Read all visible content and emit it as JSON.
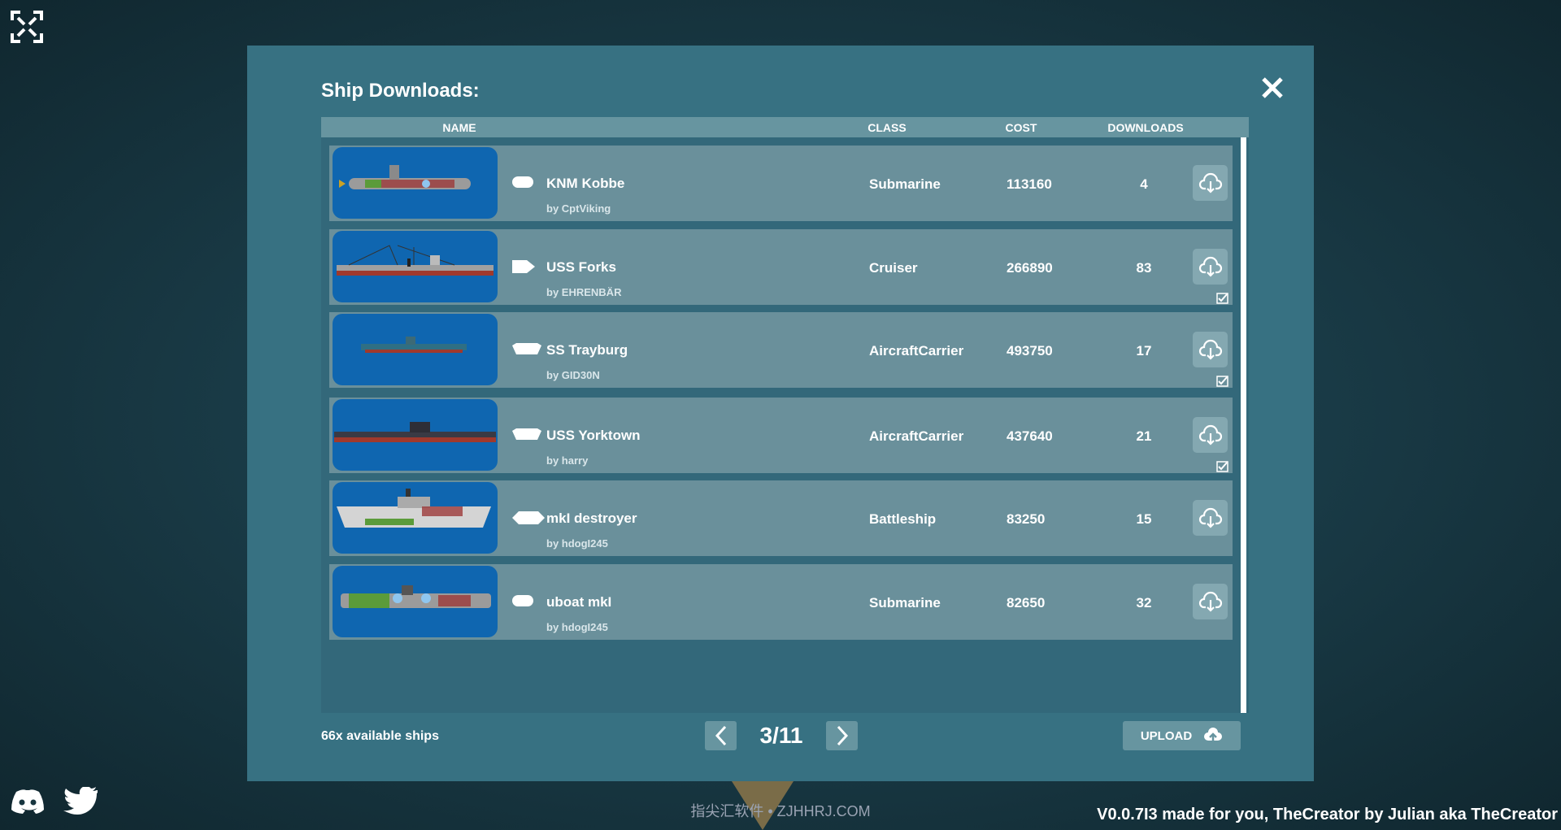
{
  "dialog": {
    "title": "Ship Downloads:",
    "close_icon": "close-icon"
  },
  "columns": {
    "name": "NAME",
    "class": "CLASS",
    "cost": "COST",
    "downloads": "DOWNLOADS"
  },
  "ships": [
    {
      "name": "KNM Kobbe",
      "author": "by CptViking",
      "class": "Submarine",
      "cost": "113160",
      "downloads": "4",
      "type_icon": "pill",
      "downloaded": false
    },
    {
      "name": "USS Forks",
      "author": "by EHRENBÄR",
      "class": "Cruiser",
      "cost": "266890",
      "downloads": "83",
      "type_icon": "arrow-tag",
      "downloaded": true
    },
    {
      "name": "SS Trayburg",
      "author": "by GID30N",
      "class": "AircraftCarrier",
      "cost": "493750",
      "downloads": "17",
      "type_icon": "hull",
      "downloaded": true
    },
    {
      "name": "USS Yorktown",
      "author": "by harry",
      "class": "AircraftCarrier",
      "cost": "437640",
      "downloads": "21",
      "type_icon": "hull",
      "downloaded": true
    },
    {
      "name": "mkI destroyer",
      "author": "by hdogI245",
      "class": "Battleship",
      "cost": "83250",
      "downloads": "15",
      "type_icon": "hull-wide",
      "downloaded": false
    },
    {
      "name": "uboat mkI",
      "author": "by hdogI245",
      "class": "Submarine",
      "cost": "82650",
      "downloads": "32",
      "type_icon": "pill",
      "downloaded": false
    }
  ],
  "footer": {
    "available": "66x available ships",
    "page": "3/11",
    "upload": "UPLOAD"
  },
  "version": "V0.0.7I3 made for you, TheCreator by Julian aka TheCreator",
  "watermark": "指尖汇软件 • ZJHHRJ.COM",
  "colors": {
    "panel": "#377182",
    "row": "#6a909b",
    "thumb": "#0f66b0"
  }
}
